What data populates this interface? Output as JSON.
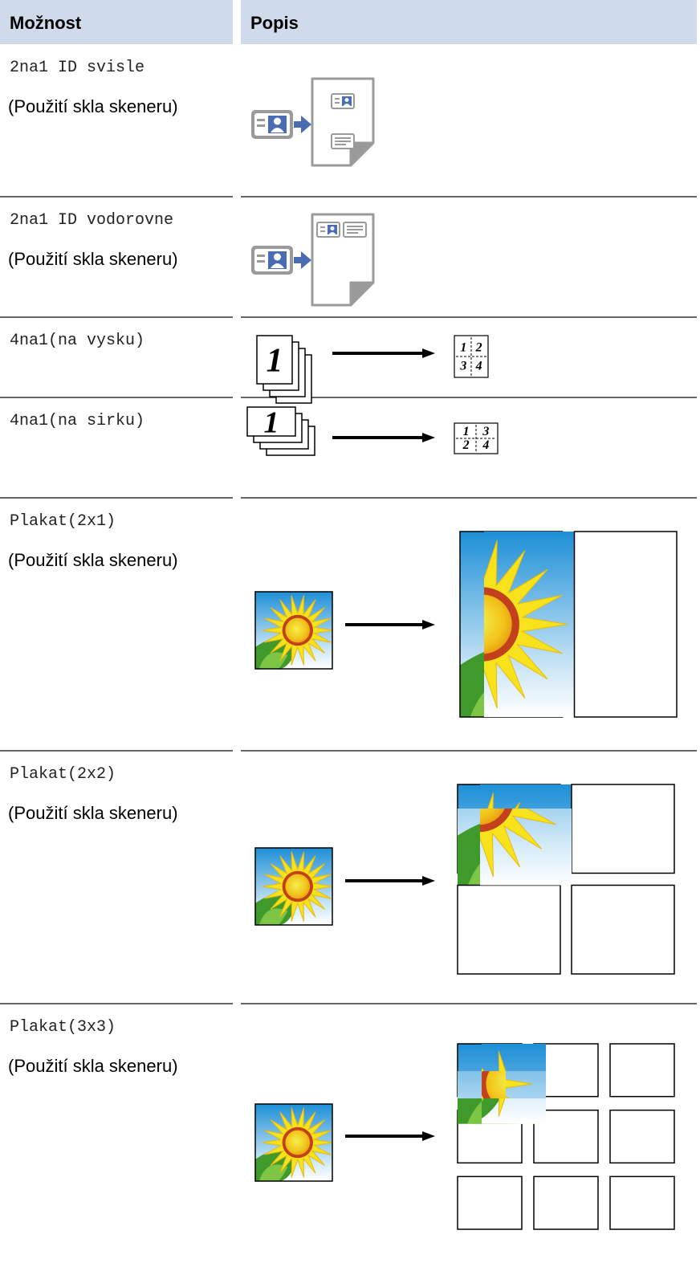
{
  "table": {
    "header": [
      "Možnost",
      "Popis"
    ],
    "rows": [
      {
        "option": "2na1 ID svisle",
        "note": "(Použití skla skeneru)"
      },
      {
        "option": "2na1 ID vodorovne",
        "note": "(Použití skla skeneru)"
      },
      {
        "option": "4na1(na vysku)",
        "figure_text": [
          "1",
          "1",
          "2",
          "3",
          "4"
        ]
      },
      {
        "option": "4na1(na sirku)",
        "figure_text": [
          "1",
          "1",
          "3",
          "2",
          "4"
        ]
      },
      {
        "option": "Plakat(2x1)",
        "note": "(Použití skla skeneru)"
      },
      {
        "option": "Plakat(2x2)",
        "note": "(Použití skla skeneru)"
      },
      {
        "option": "Plakat(3x3)",
        "note": "(Použití skla skeneru)"
      }
    ]
  }
}
